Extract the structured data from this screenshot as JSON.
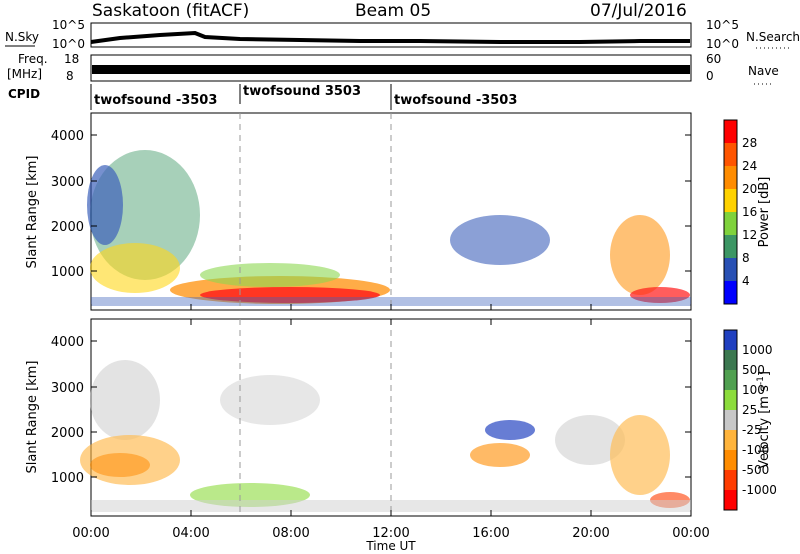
{
  "header": {
    "station": "Saskatoon (fitACF)",
    "beam": "Beam 05",
    "date": "07/Jul/2016"
  },
  "panels": {
    "nsky_label": "N.Sky",
    "nsky_ticks": [
      "10^5",
      "10^0"
    ],
    "nsearch_label": "N.Search",
    "nsearch_ticks": [
      "10^5",
      "10^0"
    ],
    "freq_label_1": "Freq.",
    "freq_label_2": "[MHz]",
    "freq_ticks": [
      "18",
      "8"
    ],
    "nave_label": "Nave",
    "nave_ticks": [
      "60",
      "0"
    ],
    "cpid_label": "CPID",
    "cpid_segments": [
      "twofsound -3503",
      "twofsound 3503",
      "twofsound -3503"
    ]
  },
  "chart_data": [
    {
      "type": "heatmap",
      "title": "",
      "ylabel": "Slant Range [km]",
      "yticks": [
        "4000",
        "3000",
        "2000",
        "1000"
      ],
      "ylim": [
        180,
        4500
      ],
      "colorbar_label": "Power [dB]",
      "colorbar_ticks": [
        "28",
        "24",
        "20",
        "16",
        "12",
        "8",
        "4"
      ],
      "colorbar_colors": [
        "#ff0000",
        "#ff5500",
        "#ff8c00",
        "#ffd200",
        "#7fd23c",
        "#3c9664",
        "#2850b4",
        "#0000ff"
      ],
      "data_extent_approx": [
        {
          "x_h": [
            0,
            4
          ],
          "y_km": [
            300,
            3400
          ]
        },
        {
          "x_h": [
            4,
            10
          ],
          "y_km": [
            300,
            1200
          ]
        },
        {
          "x_h": [
            13,
            23.5
          ],
          "y_km": [
            300,
            2600
          ]
        }
      ]
    },
    {
      "type": "heatmap",
      "title": "",
      "ylabel": "Slant Range [km]",
      "yticks": [
        "4000",
        "3000",
        "2000",
        "1000"
      ],
      "ylim": [
        180,
        4500
      ],
      "colorbar_label": "Velocity [m s^-1]",
      "colorbar_ticks": [
        "1000",
        "500",
        "100",
        "25",
        "-25",
        "-100",
        "-500",
        "-1000"
      ],
      "colorbar_colors": [
        "#2040c0",
        "#3c7850",
        "#50a050",
        "#8cdc3c",
        "#c8c8c8",
        "#ffb43c",
        "#ff8c00",
        "#ff3c00",
        "#ff0000"
      ],
      "xlabel": "Time UT",
      "xticks": [
        "00:00",
        "04:00",
        "08:00",
        "12:00",
        "16:00",
        "20:00",
        "00:00"
      ],
      "xlim": [
        0,
        24
      ],
      "dashed_lines_h": [
        6,
        12
      ]
    }
  ]
}
